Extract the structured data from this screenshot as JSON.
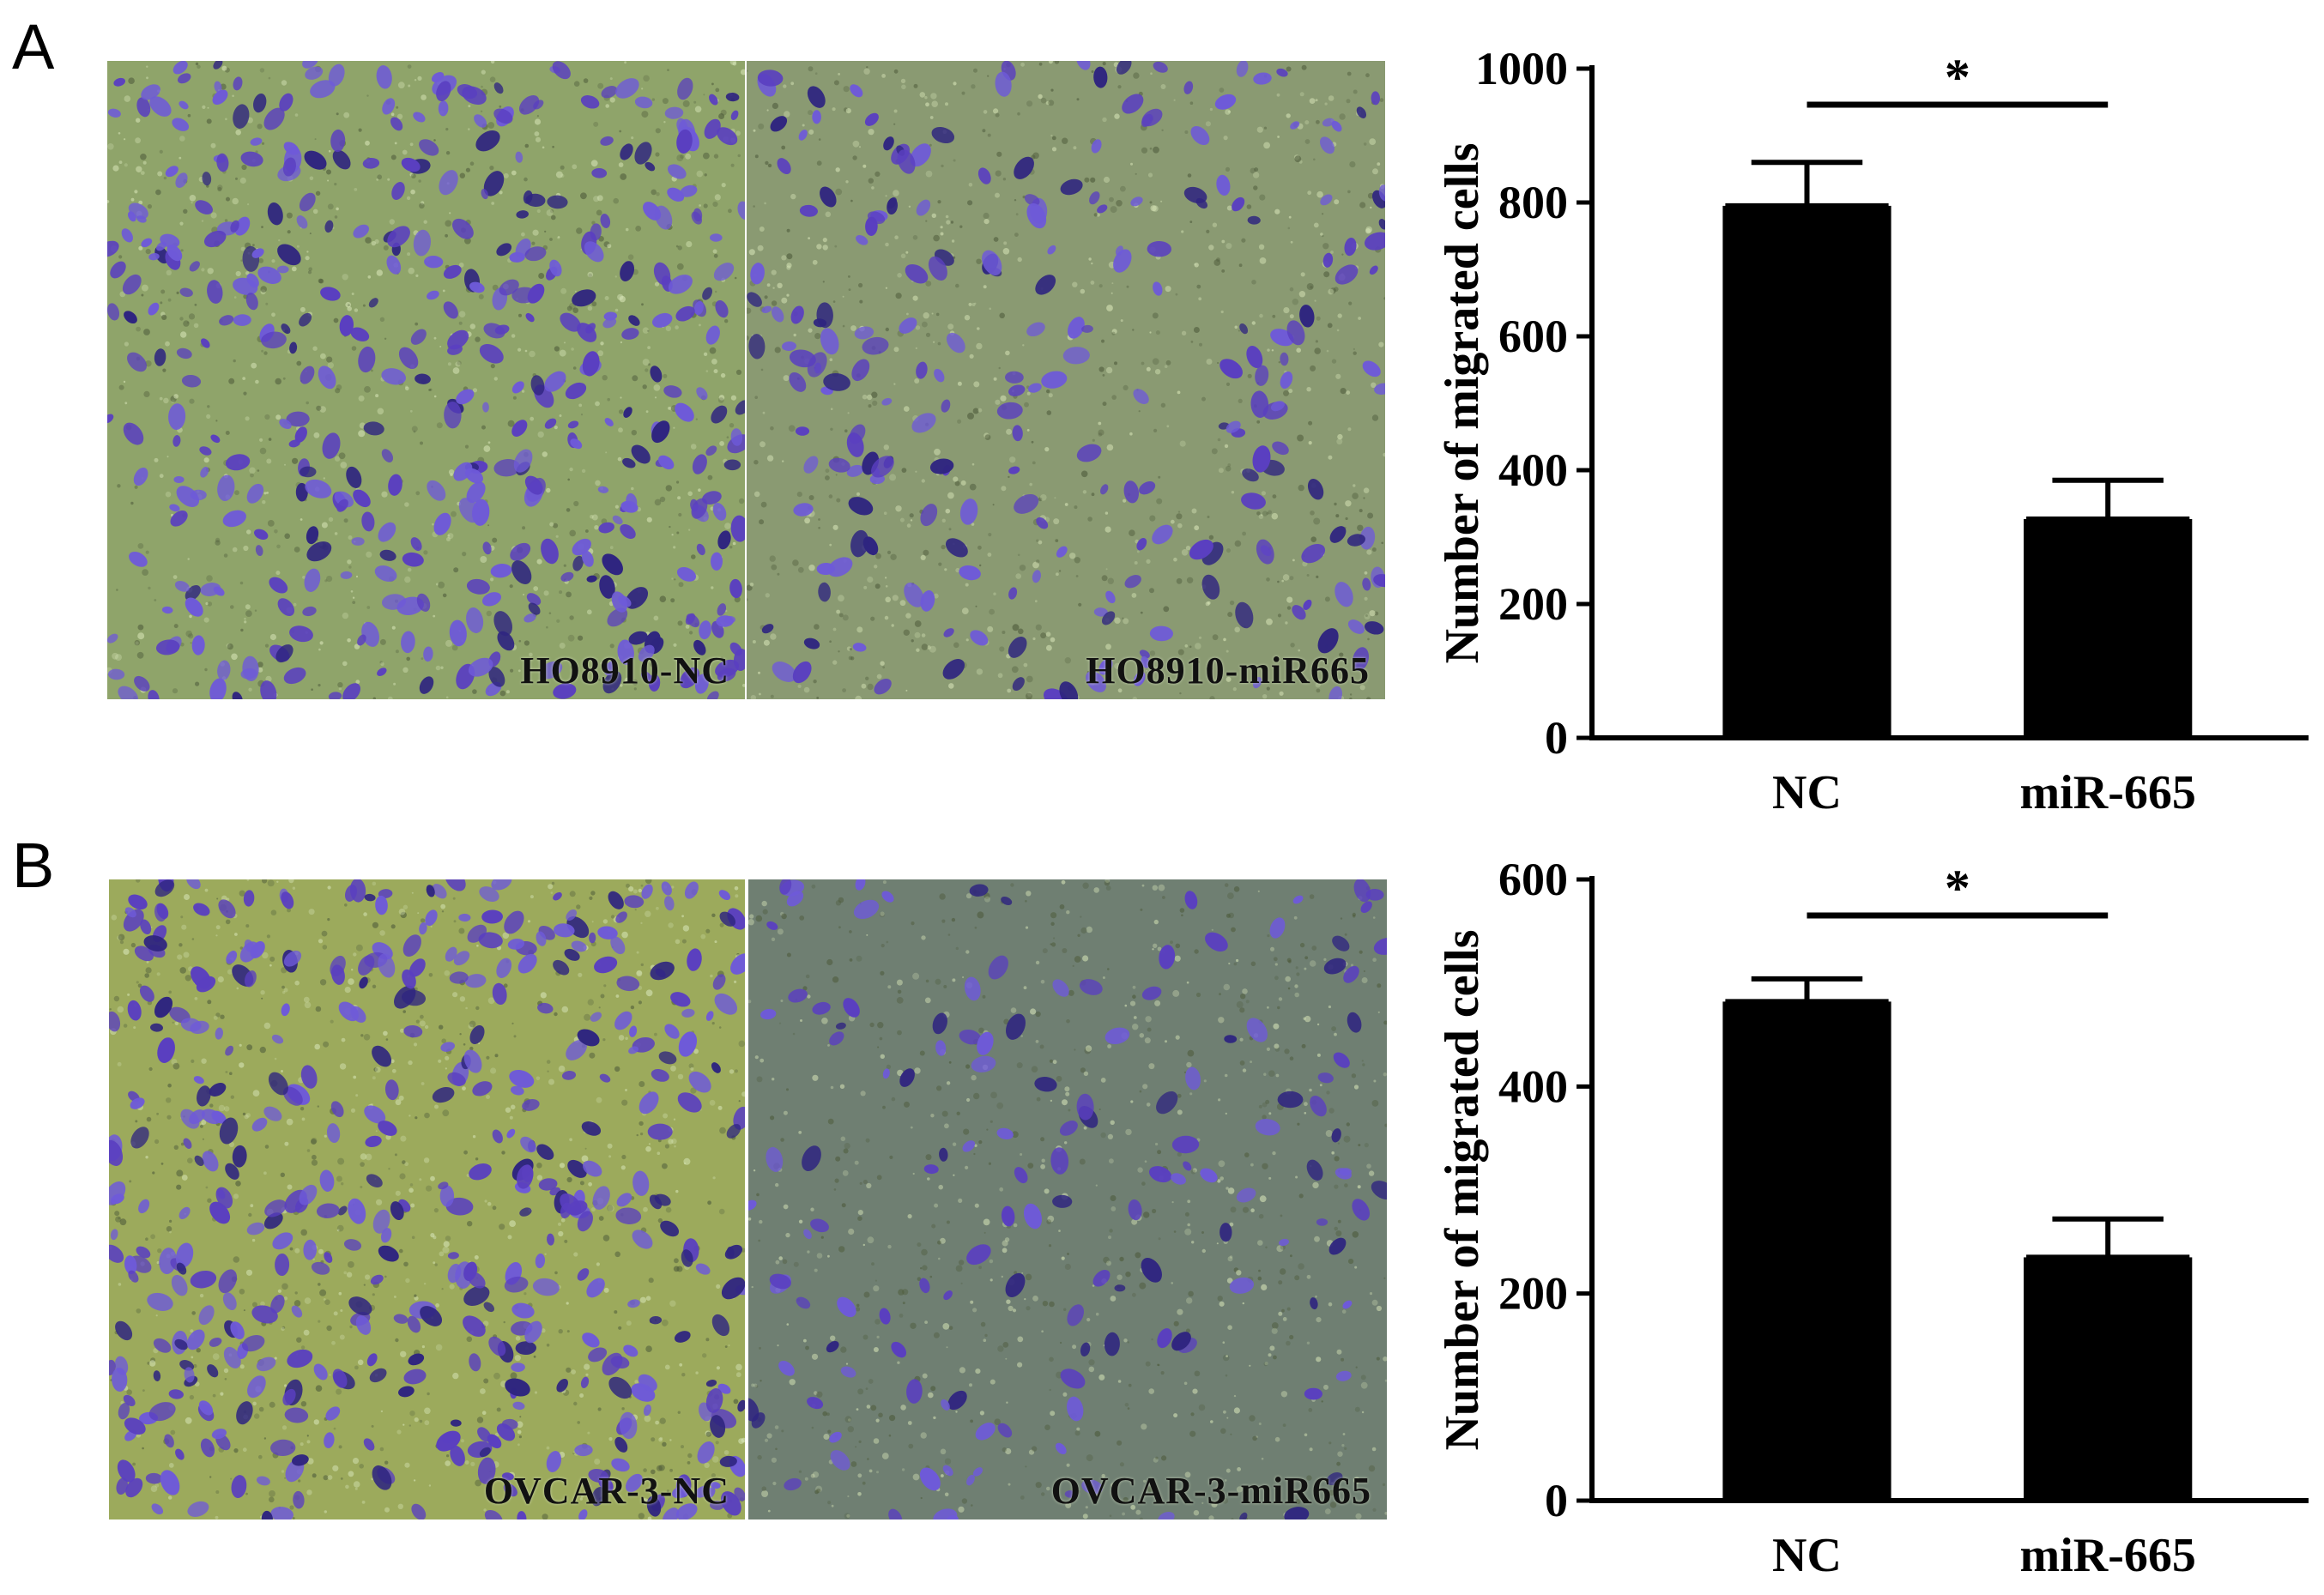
{
  "panels": [
    {
      "letter": "A",
      "images": [
        {
          "caption": "HO8910-NC",
          "cell_level": 0.6
        },
        {
          "caption": "HO8910-miR665",
          "cell_level": 0.32
        }
      ],
      "colors": {
        "background_left": "#8fa46a",
        "background_right": "#8a9a72",
        "cell": "#5a3fc0"
      }
    },
    {
      "letter": "B",
      "images": [
        {
          "caption": "OVCAR-3-NC",
          "cell_level": 0.62
        },
        {
          "caption": "OVCAR-3-miR665",
          "cell_level": 0.2
        }
      ],
      "colors": {
        "background_left": "#9caa5c",
        "background_right": "#6f7f72",
        "cell": "#5a3fc0"
      }
    }
  ],
  "chart_data": [
    {
      "type": "bar",
      "categories": [
        "NC",
        "miR-665"
      ],
      "values": [
        795,
        327
      ],
      "error": [
        65,
        58
      ],
      "ylabel": "Number of migrated cells",
      "ylim": [
        0,
        1000
      ],
      "yticks": [
        "0",
        "200",
        "400",
        "600",
        "800",
        "1000"
      ],
      "significance": "*",
      "bar_color": "#000000",
      "grid": false
    },
    {
      "type": "bar",
      "categories": [
        "NC",
        "miR-665"
      ],
      "values": [
        482,
        235
      ],
      "error": [
        22,
        37
      ],
      "ylabel": "Number of migrated cells",
      "ylim": [
        0,
        600
      ],
      "yticks": [
        "0",
        "200",
        "400",
        "600"
      ],
      "significance": "*",
      "bar_color": "#000000",
      "grid": false
    }
  ]
}
